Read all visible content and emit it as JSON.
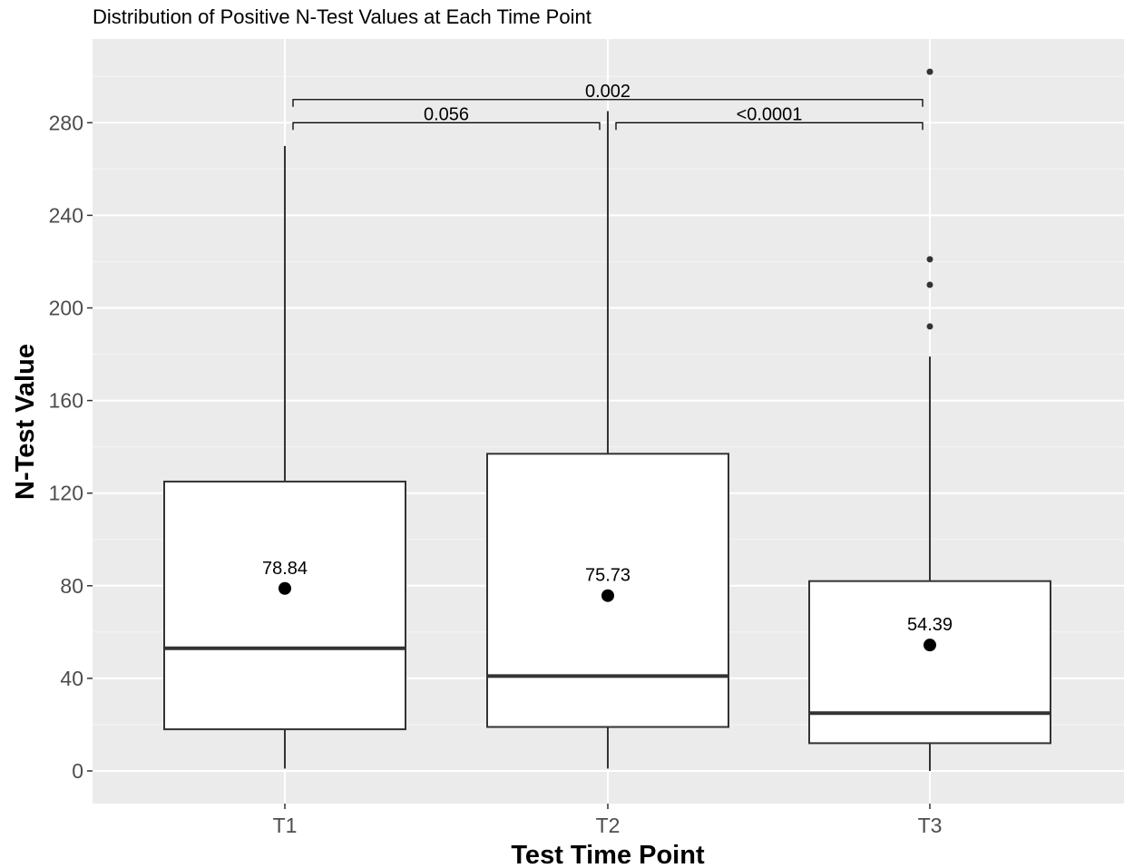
{
  "chart_data": {
    "type": "boxplot",
    "title": "Distribution of Positive N-Test Values at Each Time Point",
    "xlabel": "Test Time Point",
    "ylabel": "N-Test Value",
    "ylim": [
      -7,
      300
    ],
    "yticks": [
      0,
      40,
      80,
      120,
      160,
      200,
      240,
      280
    ],
    "grid": true,
    "colors": {
      "panel": "#ebebeb",
      "grid_major": "#ffffff",
      "grid_minor": "#f5f5f5",
      "box_fill": "#ffffff",
      "box_stroke": "#333333",
      "mean_point": "#000000",
      "outlier": "#333333",
      "tick_label": "#4d4d4d"
    },
    "categories": [
      "T1",
      "T2",
      "T3"
    ],
    "boxes": [
      {
        "category": "T1",
        "whisker_low": 1,
        "q1": 18,
        "median": 53,
        "q3": 125,
        "whisker_high": 270,
        "mean": 78.84,
        "mean_label": "78.84",
        "outliers": []
      },
      {
        "category": "T2",
        "whisker_low": 1,
        "q1": 19,
        "median": 41,
        "q3": 137,
        "whisker_high": 285,
        "mean": 75.73,
        "mean_label": "75.73",
        "outliers": []
      },
      {
        "category": "T3",
        "whisker_low": 0,
        "q1": 12,
        "median": 25,
        "q3": 82,
        "whisker_high": 179,
        "mean": 54.39,
        "mean_label": "54.39",
        "outliers": [
          192,
          210,
          221,
          302
        ]
      }
    ],
    "comparisons": [
      {
        "from": "T1",
        "to": "T2",
        "label": "0.056",
        "y": 280
      },
      {
        "from": "T2",
        "to": "T3",
        "label": "<0.0001",
        "y": 280
      },
      {
        "from": "T1",
        "to": "T3",
        "label": "0.002",
        "y": 290
      }
    ]
  }
}
